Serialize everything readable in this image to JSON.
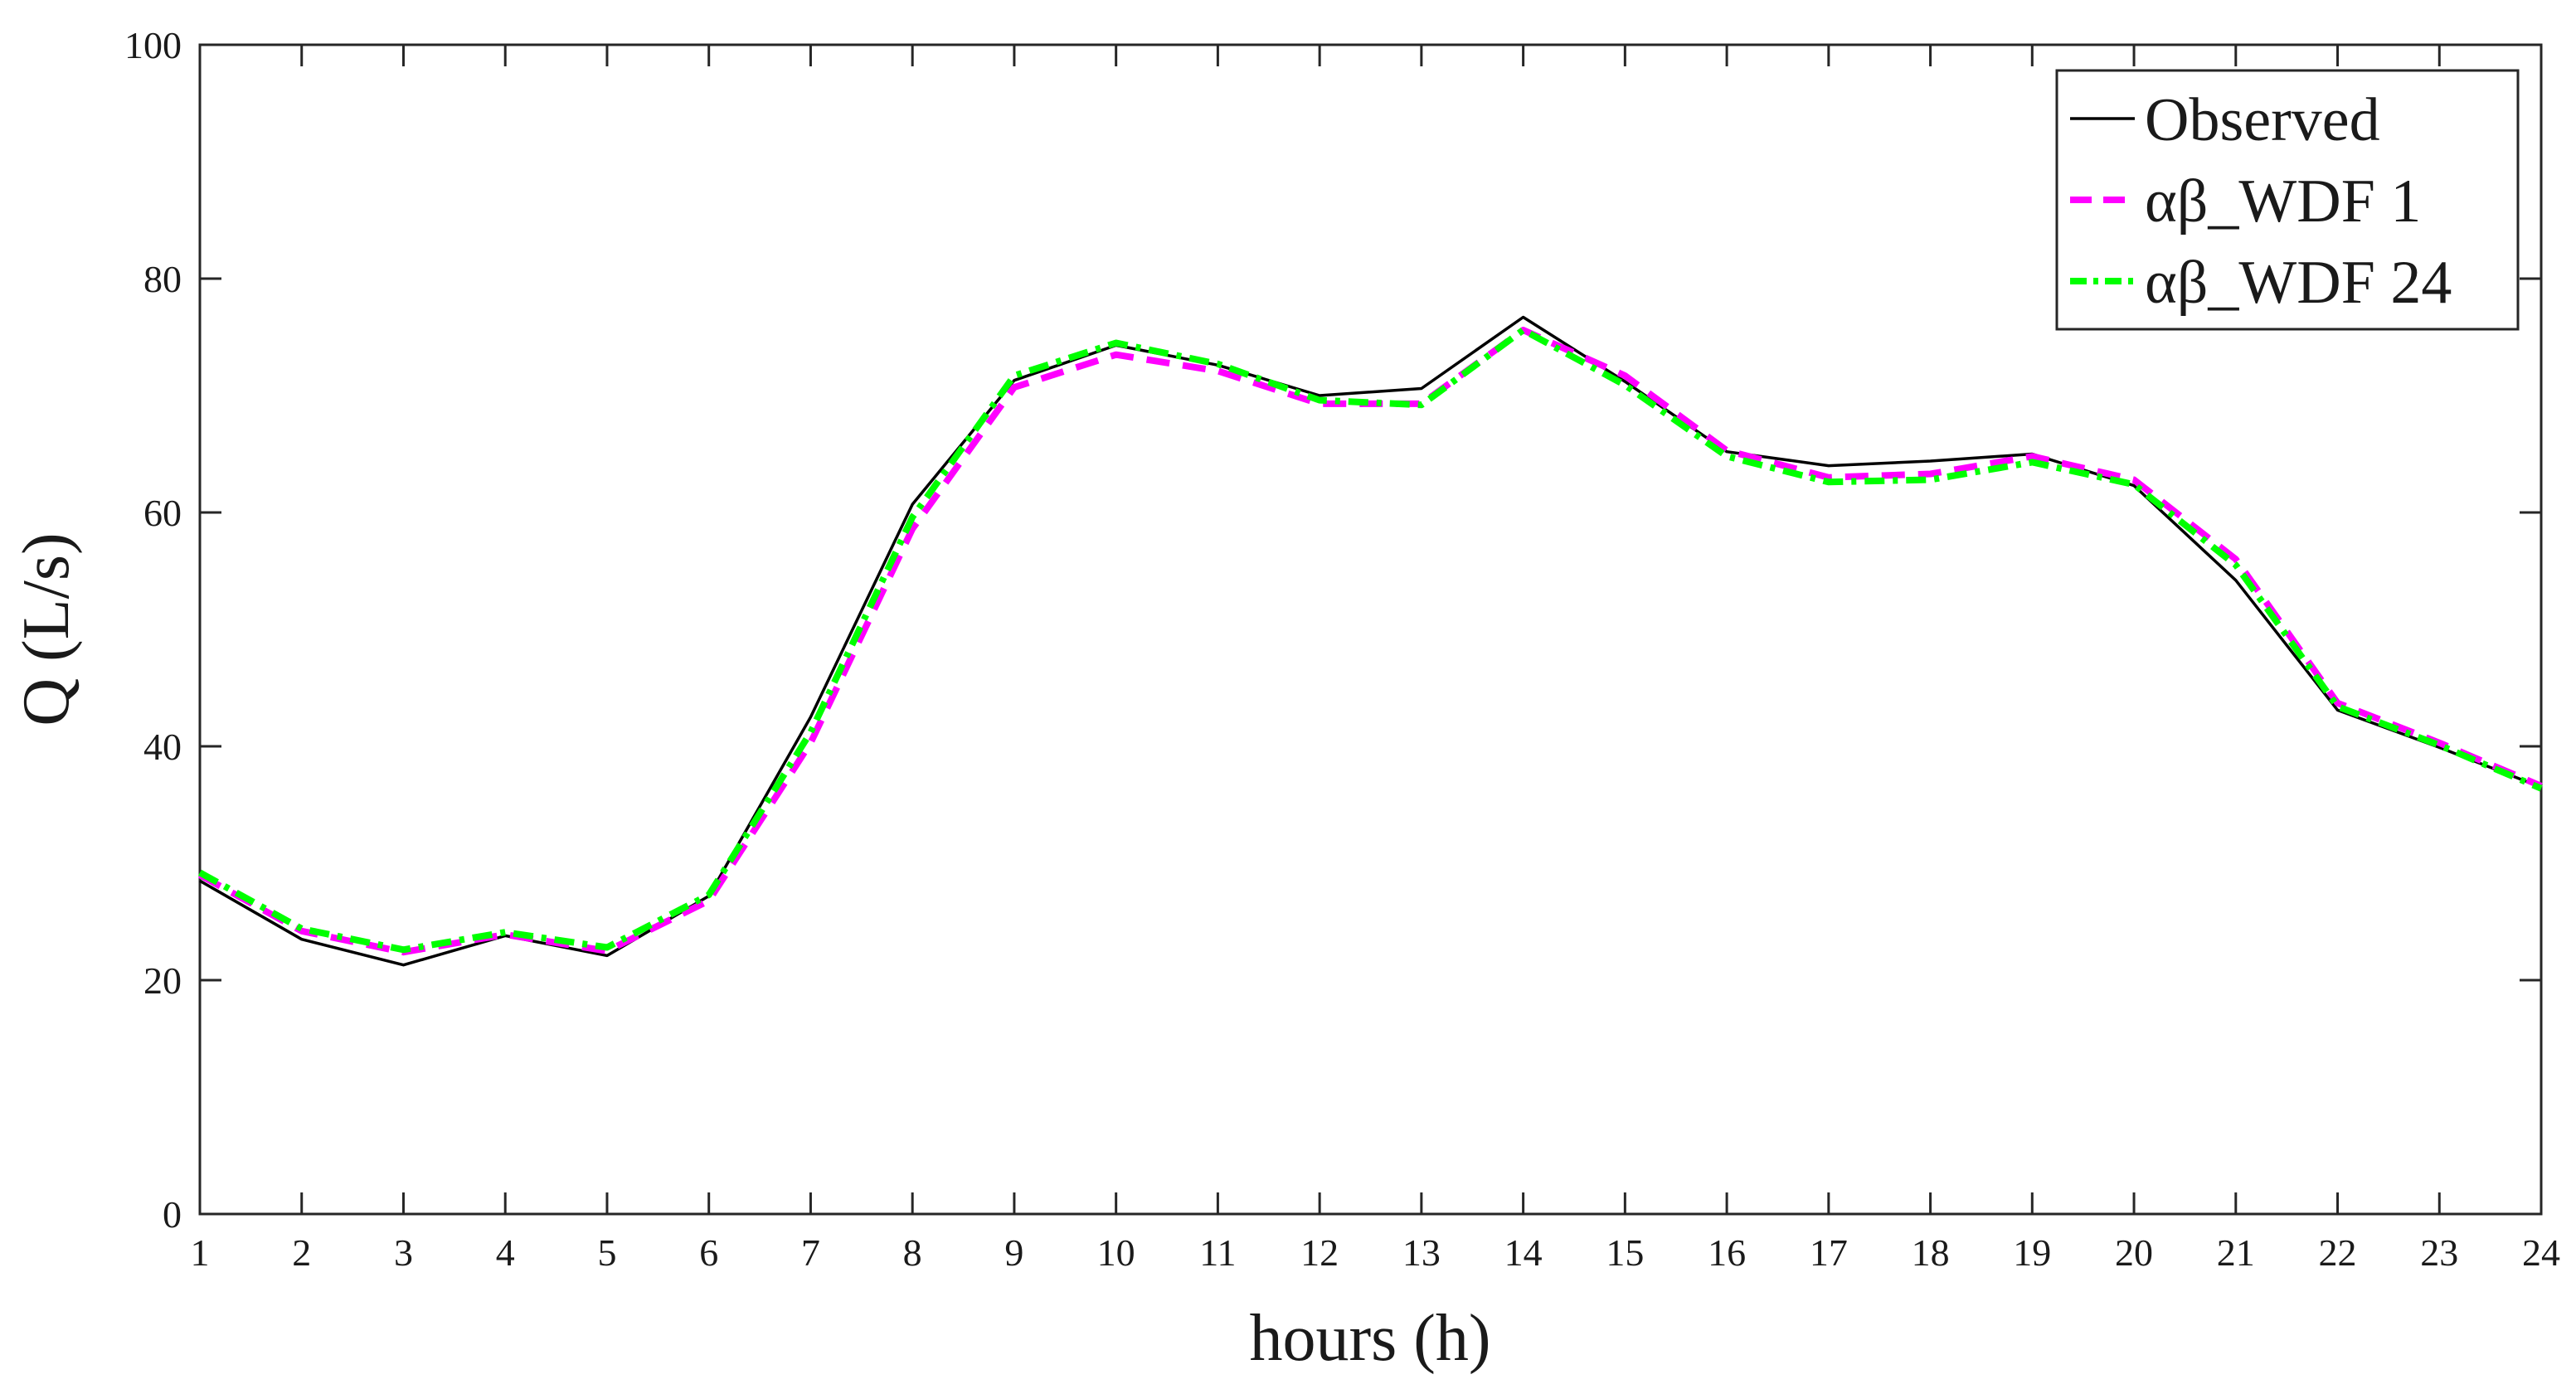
{
  "chart_data": {
    "type": "line",
    "title": "",
    "xlabel": "hours (h)",
    "ylabel": "Q (L/s)",
    "xlim": [
      1,
      24
    ],
    "ylim": [
      0,
      100
    ],
    "x": [
      1,
      2,
      3,
      4,
      5,
      6,
      7,
      8,
      9,
      10,
      11,
      12,
      13,
      14,
      15,
      16,
      17,
      18,
      19,
      20,
      21,
      22,
      23,
      24
    ],
    "x_ticks": [
      "1",
      "2",
      "3",
      "4",
      "5",
      "6",
      "7",
      "8",
      "9",
      "10",
      "11",
      "12",
      "13",
      "14",
      "15",
      "16",
      "17",
      "18",
      "19",
      "20",
      "21",
      "22",
      "23",
      "24"
    ],
    "y_ticks": [
      "0",
      "20",
      "40",
      "60",
      "80",
      "100"
    ],
    "grid": false,
    "legend_position": "top-right",
    "series": [
      {
        "name": "Observed",
        "color": "#000000",
        "style": "solid",
        "values": [
          28.5,
          23.5,
          21.3,
          23.8,
          22.1,
          27.2,
          42.5,
          60.7,
          71.3,
          74.3,
          72.6,
          70.0,
          70.6,
          76.7,
          71.2,
          65.2,
          64.0,
          64.4,
          65.0,
          62.3,
          54.2,
          43.1,
          39.9,
          36.5
        ]
      },
      {
        "name": "αβ_WDF 1",
        "color": "#ff00ff",
        "style": "dashed",
        "values": [
          29.0,
          24.2,
          22.4,
          23.9,
          22.5,
          26.8,
          40.3,
          58.6,
          70.7,
          73.5,
          72.1,
          69.3,
          69.3,
          75.6,
          71.7,
          65.3,
          63.0,
          63.3,
          64.8,
          62.8,
          56.0,
          43.7,
          40.3,
          36.6
        ]
      },
      {
        "name": "αβ_WDF 24",
        "color": "#00ff00",
        "style": "dashdot",
        "values": [
          29.2,
          24.4,
          22.6,
          24.1,
          22.8,
          27.3,
          41.2,
          59.6,
          71.7,
          74.5,
          72.7,
          69.6,
          69.2,
          75.6,
          70.9,
          64.8,
          62.6,
          62.8,
          64.3,
          62.4,
          55.5,
          43.4,
          40.1,
          36.4
        ]
      }
    ]
  }
}
